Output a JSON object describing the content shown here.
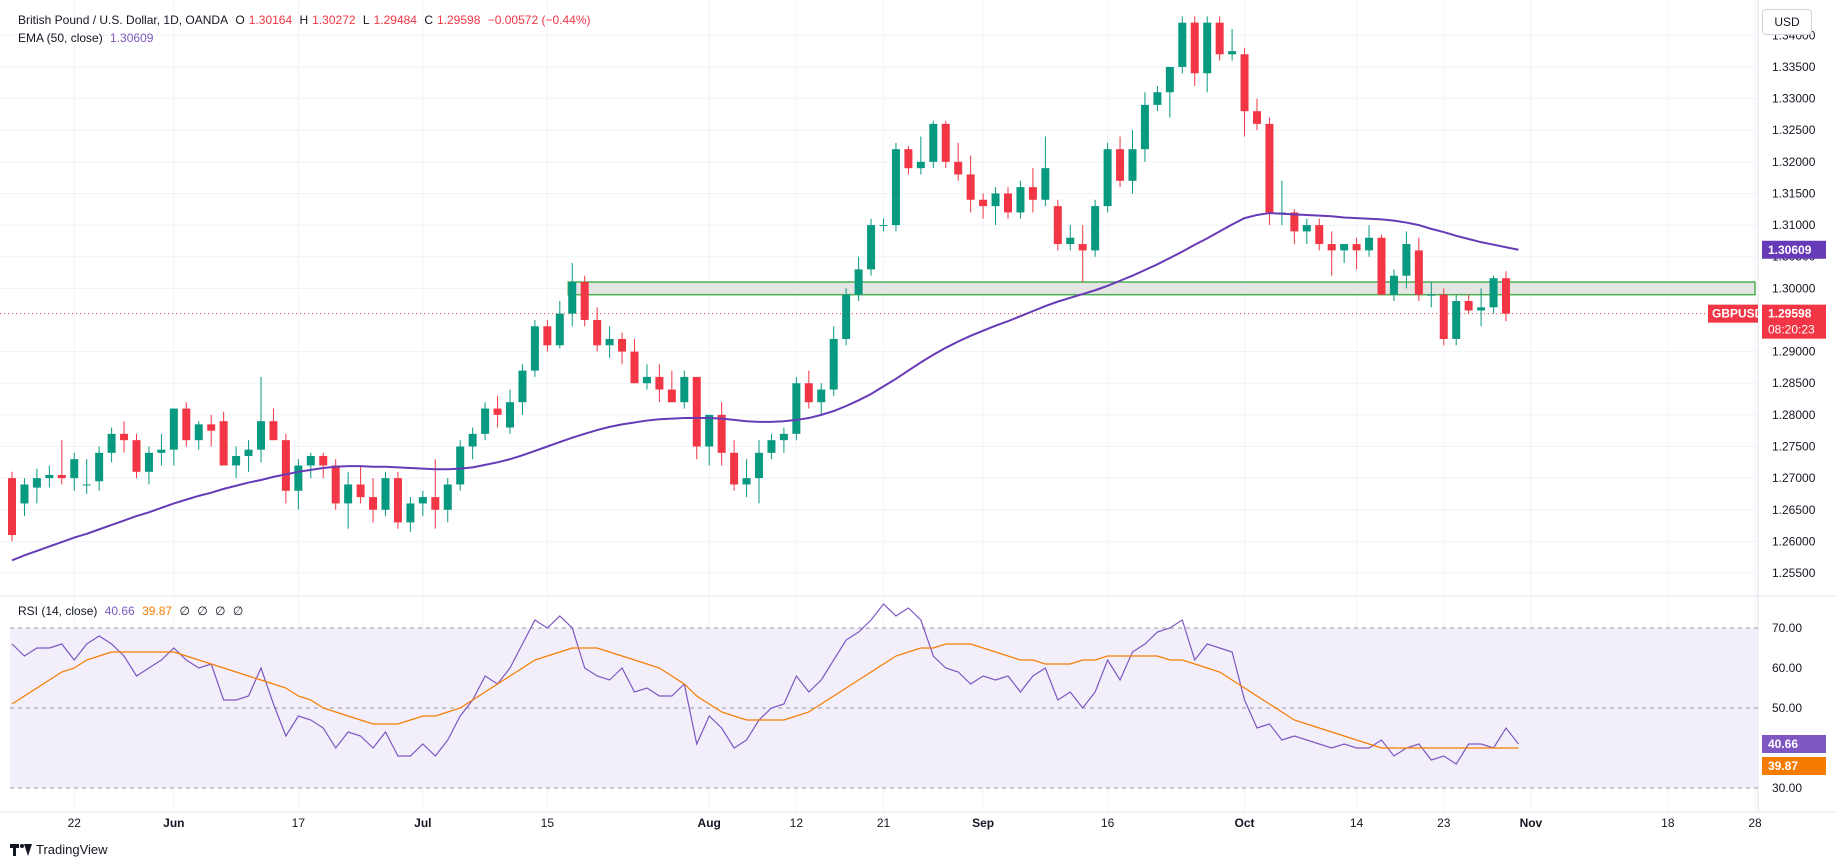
{
  "legend": {
    "symbol": "British Pound / U.S. Dollar, 1D, OANDA",
    "o_label": "O",
    "o_value": "1.30164",
    "h_label": "H",
    "h_value": "1.30272",
    "l_label": "L",
    "l_value": "1.29484",
    "c_label": "C",
    "c_value": "1.29598",
    "change": "−0.00572 (−0.44%)",
    "ema_label": "EMA (50, close)",
    "ema_value": "1.30609",
    "rsi_label": "RSI (14, close)",
    "rsi_value": "40.66",
    "rsi_ma_value": "39.87",
    "rsi_na": [
      "∅",
      "∅",
      "∅",
      "∅"
    ]
  },
  "currency_button": "USD",
  "brand": "TradingView",
  "colors": {
    "up": "#089981",
    "down": "#f23645",
    "ema": "#673ab7",
    "rsi": "#7e57c2",
    "rsi_ma": "#f57c00",
    "zone_stroke": "#4caf50",
    "zone_fill": "#e0e0e0",
    "rsi_band": "#f3effa"
  },
  "icons": {
    "brand_logo": "tradingview-logo-icon"
  },
  "chart_data": [
    {
      "type": "candlestick",
      "title": "British Pound / U.S. Dollar, 1D, OANDA",
      "y_unit": "USD",
      "ylim": [
        1.252,
        1.344
      ],
      "y_ticks": [
        1.255,
        1.26,
        1.265,
        1.27,
        1.275,
        1.28,
        1.285,
        1.29,
        1.3,
        1.305,
        1.31,
        1.315,
        1.32,
        1.325,
        1.33,
        1.335,
        1.34
      ],
      "y_tick_labels": [
        "1.25500",
        "1.26000",
        "1.26500",
        "1.27000",
        "1.27500",
        "1.28000",
        "1.28500",
        "1.29000",
        "1.30000",
        "1.30500",
        "1.31000",
        "1.31500",
        "1.32000",
        "1.32500",
        "1.33000",
        "1.33500",
        "1.34000"
      ],
      "x_tick_labels": [
        {
          "label": "22",
          "bar": 5
        },
        {
          "label": "Jun",
          "bar": 13
        },
        {
          "label": "17",
          "bar": 23
        },
        {
          "label": "Jul",
          "bar": 33
        },
        {
          "label": "15",
          "bar": 43
        },
        {
          "label": "Aug",
          "bar": 56
        },
        {
          "label": "12",
          "bar": 63
        },
        {
          "label": "21",
          "bar": 70
        },
        {
          "label": "Sep",
          "bar": 78
        },
        {
          "label": "16",
          "bar": 88
        },
        {
          "label": "Oct",
          "bar": 99
        },
        {
          "label": "14",
          "bar": 108
        },
        {
          "label": "23",
          "bar": 115
        },
        {
          "label": "Nov",
          "bar": 122
        },
        {
          "label": "18",
          "bar": 133
        },
        {
          "label": "28",
          "bar": 140
        }
      ],
      "candles": [
        [
          1.27,
          1.271,
          1.26,
          1.261
        ],
        [
          1.266,
          1.27,
          1.264,
          1.269
        ],
        [
          1.2685,
          1.2715,
          1.266,
          1.27
        ],
        [
          1.27,
          1.272,
          1.2685,
          1.2705
        ],
        [
          1.2705,
          1.276,
          1.269,
          1.27
        ],
        [
          1.27,
          1.274,
          1.268,
          1.273
        ],
        [
          1.269,
          1.273,
          1.2675,
          1.269
        ],
        [
          1.2695,
          1.275,
          1.268,
          1.274
        ],
        [
          1.274,
          1.278,
          1.2725,
          1.277
        ],
        [
          1.277,
          1.279,
          1.274,
          1.276
        ],
        [
          1.276,
          1.277,
          1.27,
          1.271
        ],
        [
          1.271,
          1.275,
          1.269,
          1.274
        ],
        [
          1.274,
          1.277,
          1.272,
          1.2745
        ],
        [
          1.2745,
          1.281,
          1.272,
          1.281
        ],
        [
          1.281,
          1.282,
          1.275,
          1.276
        ],
        [
          1.276,
          1.279,
          1.2745,
          1.2785
        ],
        [
          1.2785,
          1.28,
          1.275,
          1.2775
        ],
        [
          1.279,
          1.2805,
          1.272,
          1.272
        ],
        [
          1.272,
          1.275,
          1.27,
          1.2735
        ],
        [
          1.2735,
          1.276,
          1.271,
          1.2745
        ],
        [
          1.2745,
          1.286,
          1.2725,
          1.279
        ],
        [
          1.279,
          1.281,
          1.276,
          1.276
        ],
        [
          1.276,
          1.277,
          1.266,
          1.268
        ],
        [
          1.268,
          1.273,
          1.265,
          1.272
        ],
        [
          1.272,
          1.274,
          1.27,
          1.2735
        ],
        [
          1.2735,
          1.274,
          1.27,
          1.272
        ],
        [
          1.272,
          1.273,
          1.265,
          1.266
        ],
        [
          1.266,
          1.271,
          1.262,
          1.269
        ],
        [
          1.269,
          1.272,
          1.266,
          1.267
        ],
        [
          1.267,
          1.27,
          1.263,
          1.265
        ],
        [
          1.265,
          1.271,
          1.264,
          1.27
        ],
        [
          1.27,
          1.271,
          1.262,
          1.263
        ],
        [
          1.263,
          1.267,
          1.2615,
          1.266
        ],
        [
          1.266,
          1.268,
          1.264,
          1.267
        ],
        [
          1.267,
          1.273,
          1.262,
          1.265
        ],
        [
          1.265,
          1.27,
          1.263,
          1.269
        ],
        [
          1.269,
          1.276,
          1.268,
          1.275
        ],
        [
          1.275,
          1.278,
          1.273,
          1.277
        ],
        [
          1.277,
          1.282,
          1.276,
          1.281
        ],
        [
          1.281,
          1.283,
          1.278,
          1.28
        ],
        [
          1.278,
          1.284,
          1.277,
          1.282
        ],
        [
          1.282,
          1.288,
          1.28,
          1.287
        ],
        [
          1.287,
          1.295,
          1.286,
          1.294
        ],
        [
          1.294,
          1.295,
          1.29,
          1.291
        ],
        [
          1.291,
          1.298,
          1.2905,
          1.296
        ],
        [
          1.296,
          1.304,
          1.294,
          1.301
        ],
        [
          1.301,
          1.302,
          1.294,
          1.295
        ],
        [
          1.295,
          1.297,
          1.29,
          1.291
        ],
        [
          1.291,
          1.294,
          1.289,
          1.292
        ],
        [
          1.292,
          1.293,
          1.288,
          1.29
        ],
        [
          1.29,
          1.292,
          1.285,
          1.285
        ],
        [
          1.285,
          1.288,
          1.284,
          1.286
        ],
        [
          1.286,
          1.288,
          1.282,
          1.284
        ],
        [
          1.284,
          1.287,
          1.282,
          1.282
        ],
        [
          1.282,
          1.287,
          1.281,
          1.286
        ],
        [
          1.286,
          1.286,
          1.273,
          1.275
        ],
        [
          1.275,
          1.28,
          1.272,
          1.28
        ],
        [
          1.28,
          1.282,
          1.272,
          1.274
        ],
        [
          1.274,
          1.276,
          1.268,
          1.269
        ],
        [
          1.269,
          1.273,
          1.267,
          1.27
        ],
        [
          1.27,
          1.276,
          1.266,
          1.274
        ],
        [
          1.274,
          1.277,
          1.273,
          1.276
        ],
        [
          1.276,
          1.278,
          1.274,
          1.277
        ],
        [
          1.277,
          1.286,
          1.276,
          1.285
        ],
        [
          1.285,
          1.287,
          1.281,
          1.282
        ],
        [
          1.282,
          1.285,
          1.28,
          1.284
        ],
        [
          1.284,
          1.294,
          1.283,
          1.292
        ],
        [
          1.292,
          1.3,
          1.291,
          1.299
        ],
        [
          1.299,
          1.305,
          1.298,
          1.303
        ],
        [
          1.303,
          1.311,
          1.302,
          1.31
        ],
        [
          1.31,
          1.311,
          1.309,
          1.31
        ],
        [
          1.31,
          1.323,
          1.309,
          1.322
        ],
        [
          1.322,
          1.3225,
          1.318,
          1.319
        ],
        [
          1.319,
          1.324,
          1.318,
          1.32
        ],
        [
          1.32,
          1.3265,
          1.319,
          1.326
        ],
        [
          1.326,
          1.3265,
          1.319,
          1.32
        ],
        [
          1.32,
          1.323,
          1.317,
          1.318
        ],
        [
          1.318,
          1.321,
          1.312,
          1.314
        ],
        [
          1.314,
          1.315,
          1.311,
          1.313
        ],
        [
          1.313,
          1.316,
          1.31,
          1.315
        ],
        [
          1.315,
          1.316,
          1.311,
          1.312
        ],
        [
          1.312,
          1.317,
          1.311,
          1.316
        ],
        [
          1.316,
          1.319,
          1.312,
          1.314
        ],
        [
          1.314,
          1.324,
          1.313,
          1.319
        ],
        [
          1.313,
          1.314,
          1.306,
          1.307
        ],
        [
          1.307,
          1.31,
          1.306,
          1.308
        ],
        [
          1.307,
          1.31,
          1.301,
          1.306
        ],
        [
          1.306,
          1.314,
          1.305,
          1.313
        ],
        [
          1.313,
          1.323,
          1.312,
          1.322
        ],
        [
          1.322,
          1.324,
          1.316,
          1.317
        ],
        [
          1.317,
          1.325,
          1.315,
          1.322
        ],
        [
          1.322,
          1.331,
          1.32,
          1.329
        ],
        [
          1.329,
          1.332,
          1.328,
          1.331
        ],
        [
          1.331,
          1.335,
          1.327,
          1.335
        ],
        [
          1.335,
          1.343,
          1.334,
          1.342
        ],
        [
          1.342,
          1.343,
          1.332,
          1.334
        ],
        [
          1.334,
          1.343,
          1.331,
          1.342
        ],
        [
          1.342,
          1.343,
          1.336,
          1.337
        ],
        [
          1.337,
          1.341,
          1.336,
          1.3375
        ],
        [
          1.337,
          1.338,
          1.324,
          1.328
        ],
        [
          1.328,
          1.33,
          1.325,
          1.326
        ],
        [
          1.326,
          1.327,
          1.31,
          1.312
        ],
        [
          1.312,
          1.317,
          1.31,
          1.312
        ],
        [
          1.312,
          1.3125,
          1.307,
          1.309
        ],
        [
          1.309,
          1.311,
          1.307,
          1.31
        ],
        [
          1.31,
          1.311,
          1.306,
          1.307
        ],
        [
          1.307,
          1.309,
          1.302,
          1.306
        ],
        [
          1.306,
          1.307,
          1.304,
          1.307
        ],
        [
          1.307,
          1.308,
          1.303,
          1.306
        ],
        [
          1.306,
          1.31,
          1.305,
          1.308
        ],
        [
          1.308,
          1.3085,
          1.299,
          1.299
        ],
        [
          1.299,
          1.303,
          1.298,
          1.302
        ],
        [
          1.302,
          1.309,
          1.3,
          1.307
        ],
        [
          1.306,
          1.308,
          1.298,
          1.299
        ],
        [
          1.299,
          1.301,
          1.297,
          1.299
        ],
        [
          1.299,
          1.3,
          1.291,
          1.292
        ],
        [
          1.292,
          1.299,
          1.291,
          1.298
        ],
        [
          1.298,
          1.299,
          1.296,
          1.2965
        ],
        [
          1.2965,
          1.3,
          1.294,
          1.297
        ],
        [
          1.297,
          1.302,
          1.296,
          1.3016
        ],
        [
          1.3016,
          1.3027,
          1.2948,
          1.296
        ]
      ],
      "ema": {
        "name": "EMA (50, close)",
        "values": [
          1.257,
          1.2578,
          1.2585,
          1.2592,
          1.2599,
          1.2606,
          1.2612,
          1.2619,
          1.2626,
          1.2633,
          1.264,
          1.2646,
          1.2653,
          1.266,
          1.2666,
          1.2672,
          1.2677,
          1.2683,
          1.2688,
          1.2693,
          1.2697,
          1.2702,
          1.2706,
          1.271,
          1.2713,
          1.2716,
          1.2718,
          1.2719,
          1.2719,
          1.2718,
          1.2718,
          1.2717,
          1.2716,
          1.2715,
          1.2714,
          1.2714,
          1.2715,
          1.2717,
          1.2721,
          1.2725,
          1.273,
          1.2736,
          1.2743,
          1.275,
          1.2757,
          1.2764,
          1.277,
          1.2776,
          1.2781,
          1.2785,
          1.2788,
          1.2791,
          1.2793,
          1.2794,
          1.2795,
          1.2795,
          1.2795,
          1.2794,
          1.2792,
          1.279,
          1.2789,
          1.2789,
          1.279,
          1.2792,
          1.2795,
          1.28,
          1.2806,
          1.2814,
          1.2823,
          1.2833,
          1.2845,
          1.2857,
          1.287,
          1.2883,
          1.2895,
          1.2906,
          1.2916,
          1.2925,
          1.2933,
          1.2941,
          1.2948,
          1.2956,
          1.2964,
          1.2972,
          1.2979,
          1.2985,
          1.2991,
          1.2997,
          1.3004,
          1.3012,
          1.302,
          1.3029,
          1.3038,
          1.3048,
          1.3058,
          1.3069,
          1.3079,
          1.309,
          1.3101,
          1.3111,
          1.3116,
          1.3119,
          1.3118,
          1.3117,
          1.3116,
          1.3115,
          1.3114,
          1.3112,
          1.3111,
          1.311,
          1.3109,
          1.3107,
          1.3104,
          1.31,
          1.3094,
          1.3089,
          1.3083,
          1.3078,
          1.3073,
          1.3069,
          1.3065,
          1.3061
        ]
      },
      "zone": {
        "from_bar": 45,
        "to_bar": 140,
        "low": 1.299,
        "high": 1.301
      },
      "last_price_label": "GBPUSD",
      "last_price": "1.29598",
      "countdown": "08:20:23",
      "ema_last_label": "1.30609"
    },
    {
      "type": "line",
      "title": "RSI (14, close)",
      "ylim": [
        27,
        77
      ],
      "y_ticks": [
        30,
        40,
        50,
        60,
        70
      ],
      "y_tick_labels": [
        "30.00",
        "",
        "50.00",
        "60.00",
        "70.00"
      ],
      "band": [
        30,
        70
      ],
      "rsi": {
        "name": "RSI",
        "values": [
          66,
          63,
          65,
          65,
          66,
          62,
          66,
          68,
          66,
          63,
          58,
          60,
          62,
          65,
          62,
          60,
          61,
          52,
          52,
          53,
          60,
          51,
          43,
          48,
          47,
          45,
          40,
          44,
          43,
          40,
          44,
          38,
          38,
          41,
          38,
          42,
          48,
          52,
          58,
          56,
          60,
          66,
          72,
          70,
          73,
          70,
          60,
          58,
          57,
          60,
          54,
          55,
          53,
          53,
          56,
          41,
          48,
          45,
          40,
          42,
          47,
          50,
          51,
          58,
          54,
          57,
          62,
          67,
          69,
          72,
          76,
          73,
          75,
          72,
          63,
          60,
          59,
          56,
          58,
          57,
          58,
          54,
          58,
          60,
          52,
          54,
          50,
          54,
          62,
          57,
          64,
          66,
          69,
          70,
          72,
          62,
          66,
          65,
          64,
          52,
          45,
          46,
          42,
          43,
          42,
          41,
          40,
          41,
          40,
          40,
          42,
          38,
          40,
          41,
          37,
          38,
          36,
          41,
          41,
          40,
          45,
          41
        ]
      },
      "rsi_ma": {
        "name": "RSI-based MA",
        "values": [
          51,
          53,
          55,
          57,
          59,
          60,
          62,
          63,
          64,
          64,
          64,
          64,
          64,
          64,
          63,
          62,
          61,
          60,
          59,
          58,
          57,
          56,
          55,
          53,
          52,
          50,
          49,
          48,
          47,
          46,
          46,
          46,
          47,
          48,
          48,
          49,
          50,
          52,
          54,
          56,
          58,
          60,
          62,
          63,
          64,
          65,
          65,
          65,
          64,
          63,
          62,
          61,
          60,
          58,
          56,
          53,
          51,
          49,
          48,
          47,
          47,
          47,
          47,
          48,
          49,
          51,
          53,
          55,
          57,
          59,
          61,
          63,
          64,
          65,
          65,
          66,
          66,
          66,
          65,
          64,
          63,
          62,
          62,
          61,
          61,
          61,
          62,
          62,
          63,
          63,
          63,
          63,
          63,
          62,
          62,
          61,
          60,
          59,
          57,
          55,
          53,
          51,
          49,
          47,
          46,
          45,
          44,
          43,
          42,
          41,
          40,
          40,
          40,
          40,
          40,
          40,
          40,
          40,
          40,
          40,
          40,
          40
        ]
      },
      "last_rsi_label": "40.66",
      "last_rsi_ma_label": "39.87"
    }
  ]
}
